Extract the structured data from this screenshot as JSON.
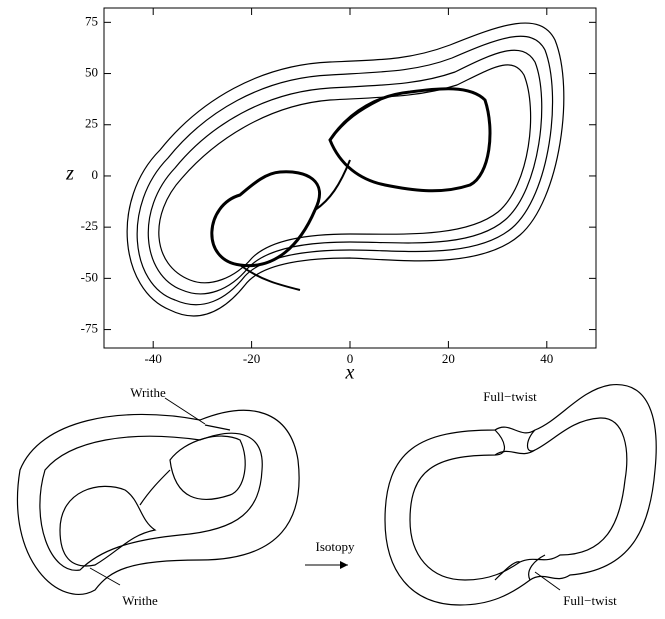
{
  "chart_data": {
    "type": "line",
    "x_label": "x",
    "y_label": "z",
    "xlim": [
      -50,
      50
    ],
    "xticks": [
      -40,
      -20,
      0,
      20,
      40
    ],
    "ylim": [
      -84,
      82
    ],
    "yticks": [
      -75,
      -50,
      -25,
      0,
      25,
      50,
      75
    ]
  },
  "diagrams": {
    "left": {
      "labels": [
        "Writhe",
        "Writhe"
      ]
    },
    "arrow": {
      "label": "Isotopy"
    },
    "right": {
      "labels": [
        "Full−twist",
        "Full−twist"
      ]
    }
  }
}
